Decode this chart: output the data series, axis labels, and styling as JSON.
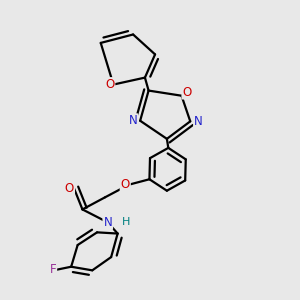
{
  "bg_color": "#e8e8e8",
  "bond_color": "#000000",
  "N_color": "#2222cc",
  "O_color": "#cc0000",
  "F_color": "#993399",
  "H_color": "#008080",
  "line_width": 1.6,
  "font_size": 8.5,
  "fig_width": 3.0,
  "fig_height": 3.0,
  "dpi": 100,
  "xlim": [
    -0.1,
    2.9
  ],
  "ylim": [
    -0.2,
    3.1
  ]
}
